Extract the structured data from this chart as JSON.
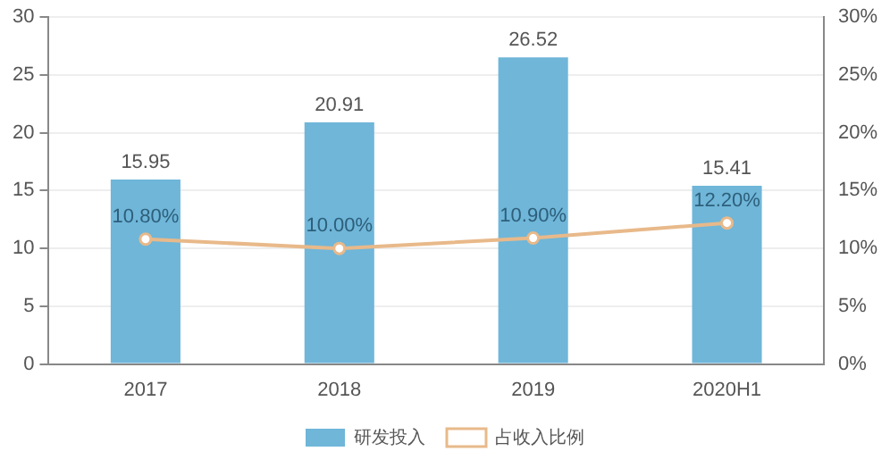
{
  "chart_data": {
    "type": "bar",
    "categories": [
      "2017",
      "2018",
      "2019",
      "2020H1"
    ],
    "series": [
      {
        "name": "研发投入",
        "color": "#6fb6d9",
        "values": [
          15.95,
          20.91,
          26.52,
          15.41
        ],
        "value_labels": [
          "15.95",
          "20.91",
          "26.52",
          "15.41"
        ]
      },
      {
        "name": "占收入比例",
        "type": "line",
        "axis": "y2",
        "color": "#e8b98a",
        "marker": "circle",
        "values": [
          10.8,
          10.0,
          10.9,
          12.2
        ],
        "value_labels": [
          "10.80%",
          "10.00%",
          "10.90%",
          "12.20%"
        ]
      }
    ],
    "ylim": [
      0,
      30
    ],
    "yticks": [
      0,
      5,
      10,
      15,
      20,
      25,
      30
    ],
    "y2lim": [
      0,
      30
    ],
    "y2ticks": [
      {
        "value": 0,
        "label": "0%"
      },
      {
        "value": 5,
        "label": "5%"
      },
      {
        "value": 10,
        "label": "10%"
      },
      {
        "value": 15,
        "label": "15%"
      },
      {
        "value": 20,
        "label": "20%"
      },
      {
        "value": 25,
        "label": "25%"
      },
      {
        "value": 30,
        "label": "30%"
      }
    ],
    "grid": "y",
    "legend": "bottom"
  }
}
